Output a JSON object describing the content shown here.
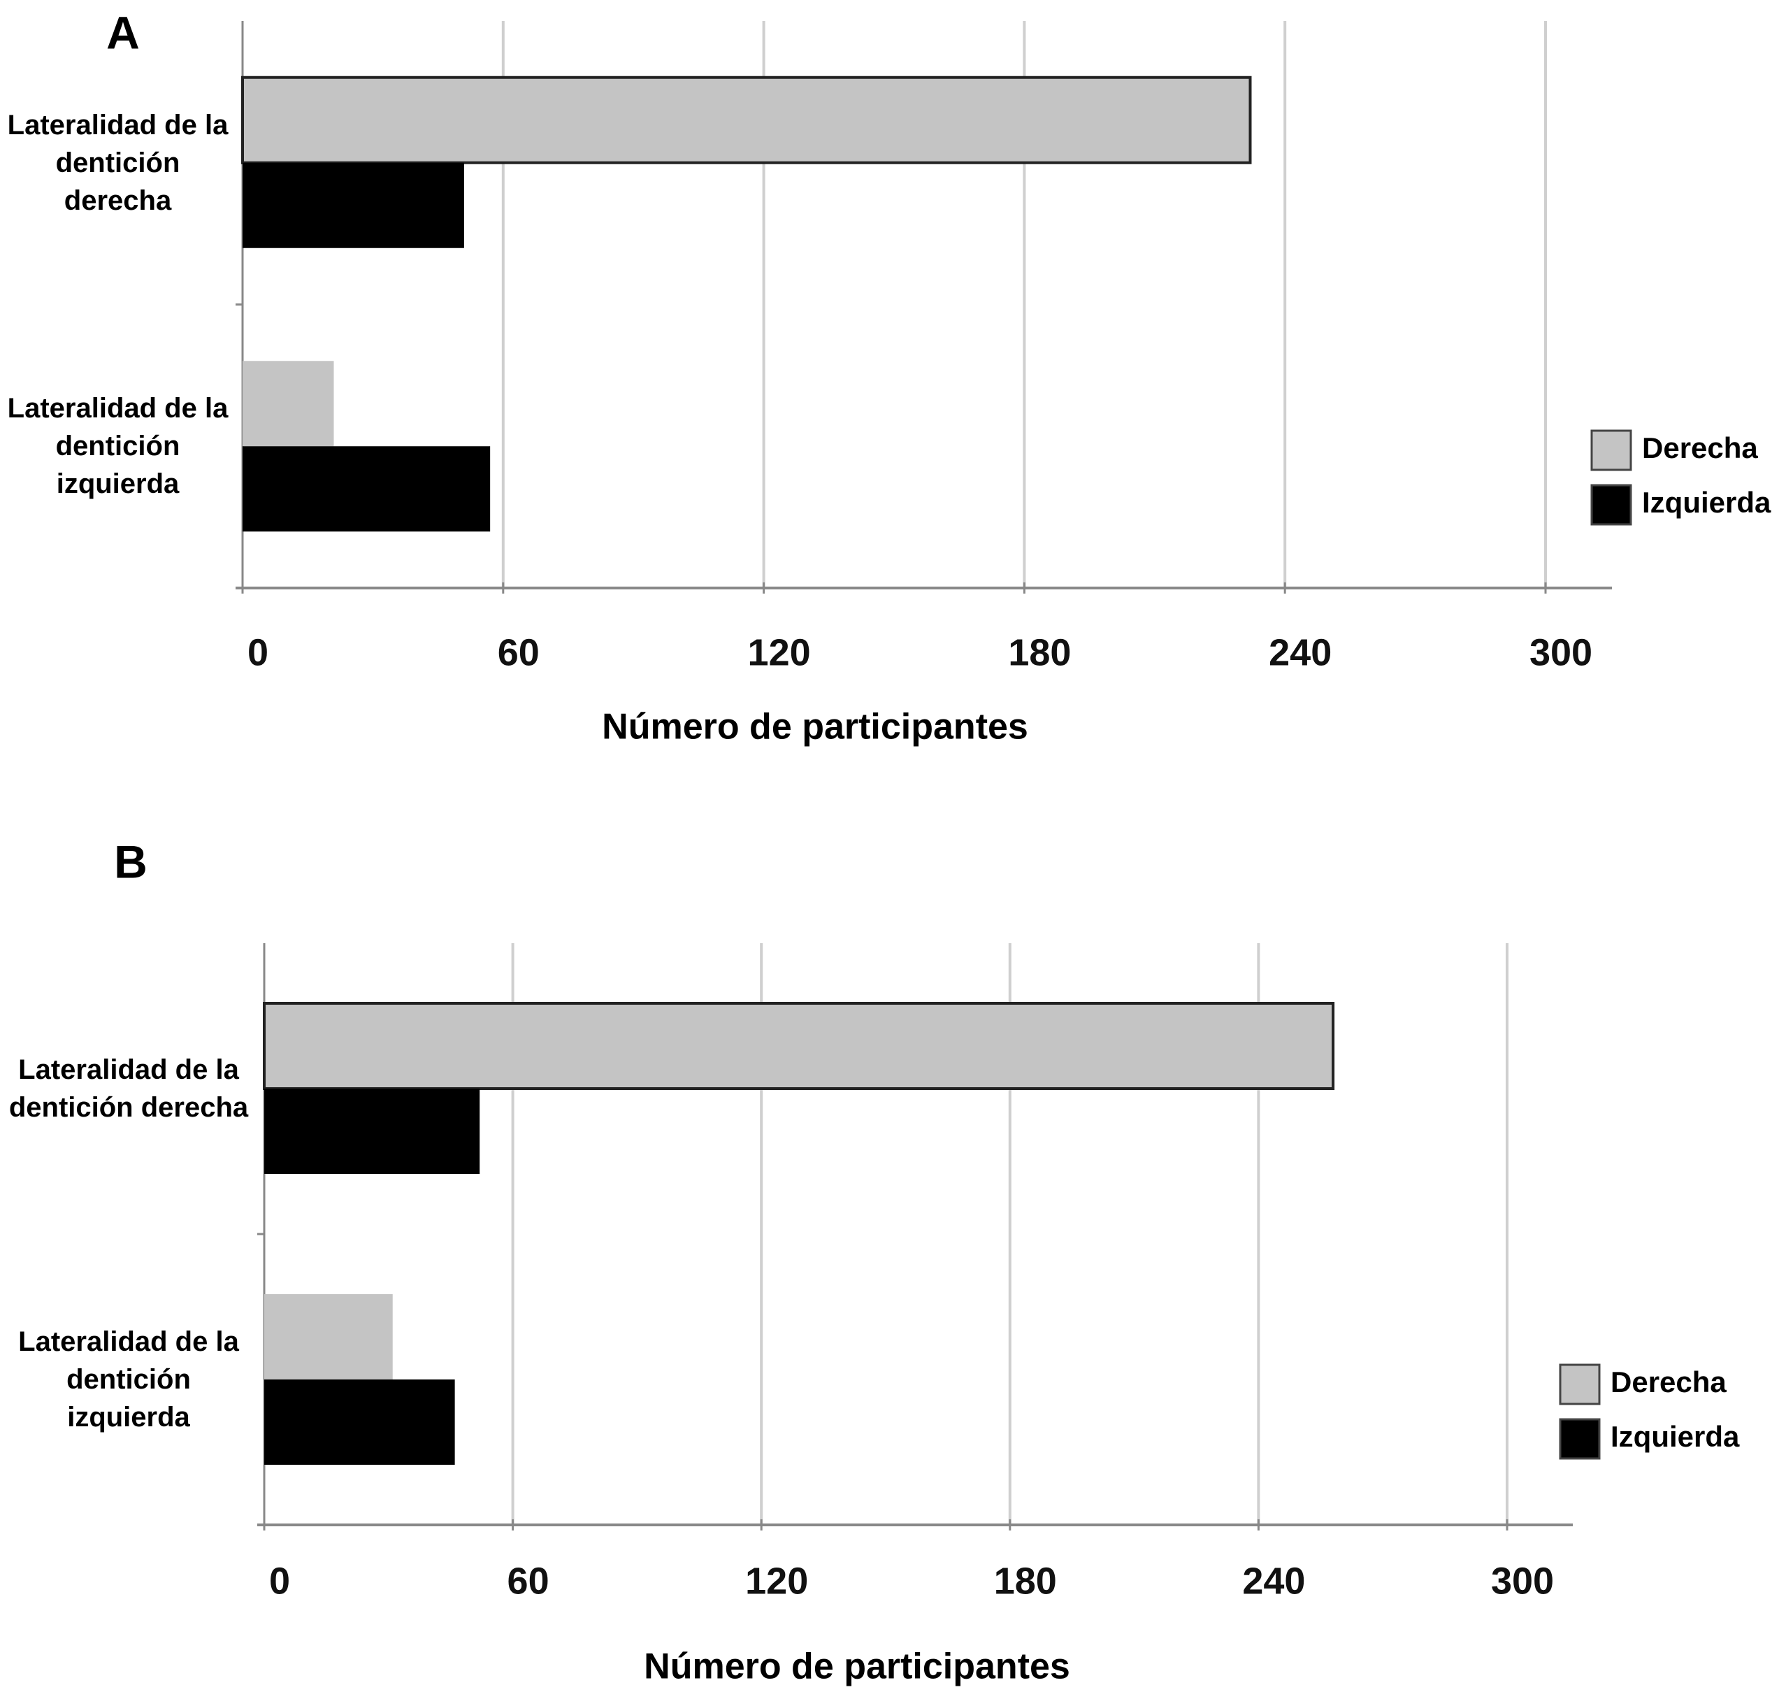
{
  "chart_data": [
    {
      "type": "bar",
      "orientation": "horizontal",
      "title": "A",
      "x_label": "Número de participantes",
      "categories": [
        "Lateralidad de la dentición derecha",
        "Lateralidad de la dentición izquierda"
      ],
      "series": [
        {
          "name": "Derecha",
          "color": "#c4c4c4",
          "values": [
            232,
            21
          ]
        },
        {
          "name": "Izquierda",
          "color": "#000000",
          "values": [
            51,
            57
          ]
        }
      ],
      "xlim": [
        0,
        300
      ],
      "xticks": [
        0,
        60,
        120,
        180,
        240,
        300
      ],
      "grid": true,
      "legend": "right"
    },
    {
      "type": "bar",
      "orientation": "horizontal",
      "title": "B",
      "x_label": "Número de participantes",
      "categories": [
        "Lateralidad de la dentición derecha",
        "Lateralidad de la dentición izquierda"
      ],
      "series": [
        {
          "name": "Derecha",
          "color": "#c4c4c4",
          "values": [
            258,
            31
          ]
        },
        {
          "name": "Izquierda",
          "color": "#000000",
          "values": [
            52,
            46
          ]
        }
      ],
      "xlim": [
        0,
        300
      ],
      "xticks": [
        0,
        60,
        120,
        180,
        240,
        300
      ],
      "grid": true,
      "legend": "right"
    }
  ]
}
